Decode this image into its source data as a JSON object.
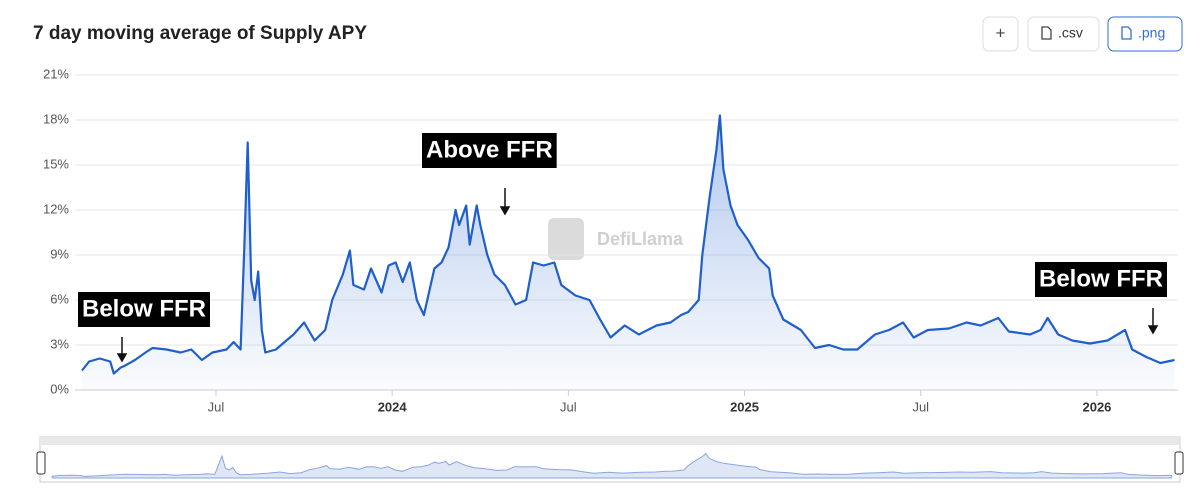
{
  "buttons": [
    "+",
    ".csv",
    ".png"
  ],
  "chart_data": {
    "type": "area",
    "title": "7 day moving average of Supply APY",
    "watermark": "DefiLlama",
    "annotations": [
      "Below FFR",
      "Above FFR",
      "Below FFR"
    ],
    "color": "#1f5fcc",
    "grid": true,
    "xlim": [
      2023.1,
      2026.23
    ],
    "xticks": [
      {
        "value": 2023.5,
        "label": "Jul"
      },
      2024,
      {
        "value": 2024.5,
        "label": "Jul"
      },
      2025,
      {
        "value": 2025.5,
        "label": "Jul"
      },
      2026
    ],
    "ylim": [
      0,
      21
    ],
    "yticks": [
      {
        "value": 0,
        "label": "0%"
      },
      {
        "value": 3,
        "label": "3%"
      },
      {
        "value": 6,
        "label": "6%"
      },
      {
        "value": 9,
        "label": "9%"
      },
      {
        "value": 12,
        "label": "12%"
      },
      {
        "value": 15,
        "label": "15%"
      },
      {
        "value": 18,
        "label": "18%"
      },
      {
        "value": 21,
        "label": "21%"
      }
    ],
    "x": [
      2023.12,
      2023.14,
      2023.17,
      2023.2,
      2023.21,
      2023.23,
      2023.24,
      2023.27,
      2023.3,
      2023.32,
      2023.36,
      2023.4,
      2023.43,
      2023.46,
      2023.49,
      2023.53,
      2023.55,
      2023.57,
      2023.58,
      2023.59,
      2023.6,
      2023.61,
      2023.62,
      2023.63,
      2023.64,
      2023.67,
      2023.7,
      2023.72,
      2023.75,
      2023.78,
      2023.81,
      2023.83,
      2023.86,
      2023.88,
      2023.89,
      2023.92,
      2023.94,
      2023.97,
      2023.99,
      2024.01,
      2024.03,
      2024.05,
      2024.07,
      2024.09,
      2024.12,
      2024.14,
      2024.16,
      2024.18,
      2024.19,
      2024.21,
      2024.22,
      2024.24,
      2024.25,
      2024.27,
      2024.29,
      2024.32,
      2024.35,
      2024.38,
      2024.4,
      2024.43,
      2024.46,
      2024.48,
      2024.52,
      2024.56,
      2024.59,
      2024.62,
      2024.66,
      2024.7,
      2024.75,
      2024.79,
      2024.82,
      2024.84,
      2024.87,
      2024.88,
      2024.9,
      2024.92,
      2024.93,
      2024.94,
      2024.96,
      2024.98,
      2025.01,
      2025.04,
      2025.07,
      2025.08,
      2025.11,
      2025.16,
      2025.2,
      2025.24,
      2025.28,
      2025.32,
      2025.37,
      2025.41,
      2025.45,
      2025.48,
      2025.52,
      2025.58,
      2025.63,
      2025.67,
      2025.72,
      2025.75,
      2025.81,
      2025.84,
      2025.86,
      2025.89,
      2025.93,
      2025.98,
      2026.03,
      2026.08,
      2026.1,
      2026.14,
      2026.18,
      2026.22
    ],
    "values": [
      1.3,
      1.9,
      2.1,
      1.9,
      1.1,
      1.5,
      1.6,
      2.0,
      2.5,
      2.8,
      2.7,
      2.5,
      2.7,
      2.0,
      2.5,
      2.7,
      3.2,
      2.7,
      9.3,
      16.5,
      7.3,
      6.0,
      7.9,
      4.0,
      2.5,
      2.7,
      3.3,
      3.7,
      4.5,
      3.3,
      4.0,
      6.0,
      7.7,
      9.3,
      7.0,
      6.7,
      8.1,
      6.5,
      8.3,
      8.5,
      7.2,
      8.5,
      6.0,
      5.0,
      8.1,
      8.5,
      9.5,
      12.0,
      11.0,
      12.3,
      9.7,
      12.3,
      11.0,
      9.0,
      7.7,
      7.0,
      5.7,
      6.0,
      8.5,
      8.3,
      8.5,
      7.0,
      6.3,
      6.0,
      4.7,
      3.5,
      4.3,
      3.7,
      4.3,
      4.5,
      5.0,
      5.2,
      6.0,
      9.0,
      12.7,
      16.0,
      18.3,
      14.7,
      12.3,
      11.0,
      10.0,
      8.8,
      8.1,
      6.3,
      4.7,
      4.0,
      2.8,
      3.0,
      2.7,
      2.7,
      3.7,
      4.0,
      4.5,
      3.5,
      4.0,
      4.1,
      4.5,
      4.3,
      4.8,
      3.9,
      3.7,
      4.0,
      4.8,
      3.7,
      3.3,
      3.1,
      3.3,
      4.0,
      2.7,
      2.2,
      1.8,
      2.0
    ]
  }
}
